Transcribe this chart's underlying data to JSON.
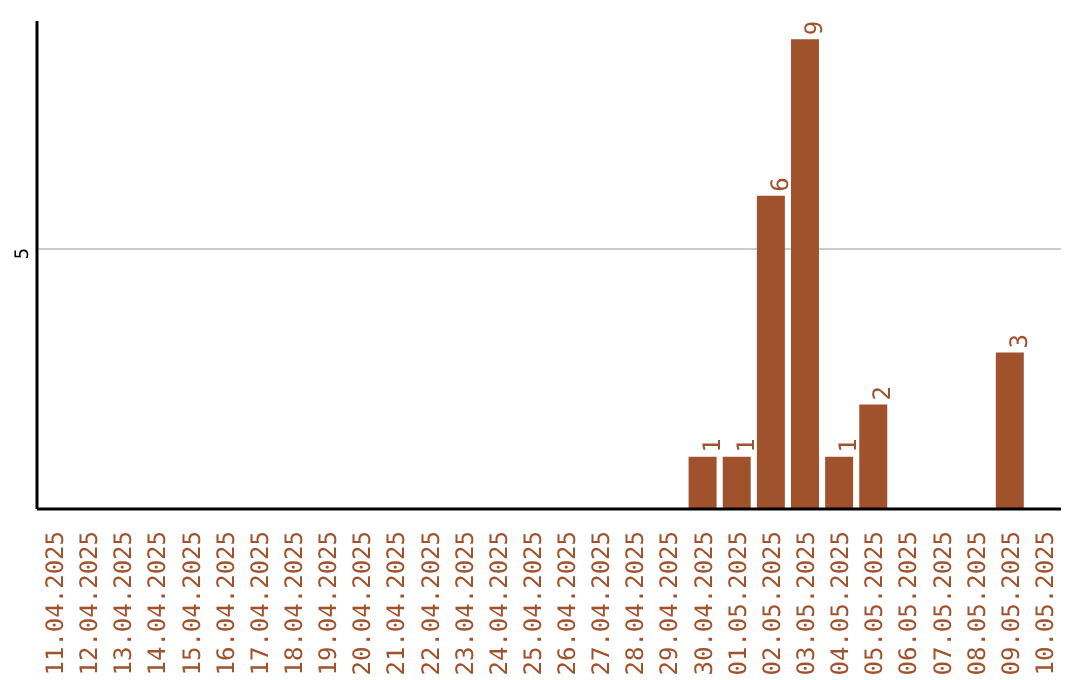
{
  "chart_data": {
    "type": "bar",
    "categories": [
      "11.04.2025",
      "12.04.2025",
      "13.04.2025",
      "14.04.2025",
      "15.04.2025",
      "16.04.2025",
      "17.04.2025",
      "18.04.2025",
      "19.04.2025",
      "20.04.2025",
      "21.04.2025",
      "22.04.2025",
      "23.04.2025",
      "24.04.2025",
      "25.04.2025",
      "26.04.2025",
      "27.04.2025",
      "28.04.2025",
      "29.04.2025",
      "30.04.2025",
      "01.05.2025",
      "02.05.2025",
      "03.05.2025",
      "04.05.2025",
      "05.05.2025",
      "06.05.2025",
      "07.05.2025",
      "08.05.2025",
      "09.05.2025",
      "10.05.2025"
    ],
    "values": [
      null,
      null,
      null,
      null,
      null,
      null,
      null,
      null,
      null,
      null,
      null,
      null,
      null,
      null,
      null,
      null,
      null,
      null,
      null,
      1,
      1,
      6,
      9,
      1,
      2,
      null,
      null,
      null,
      3,
      null
    ],
    "data_labels": true,
    "color": "#a0522d",
    "ylim": [
      0,
      9.35
    ],
    "yticks": [
      {
        "value": 5,
        "label": "5"
      }
    ],
    "grid": "y"
  }
}
